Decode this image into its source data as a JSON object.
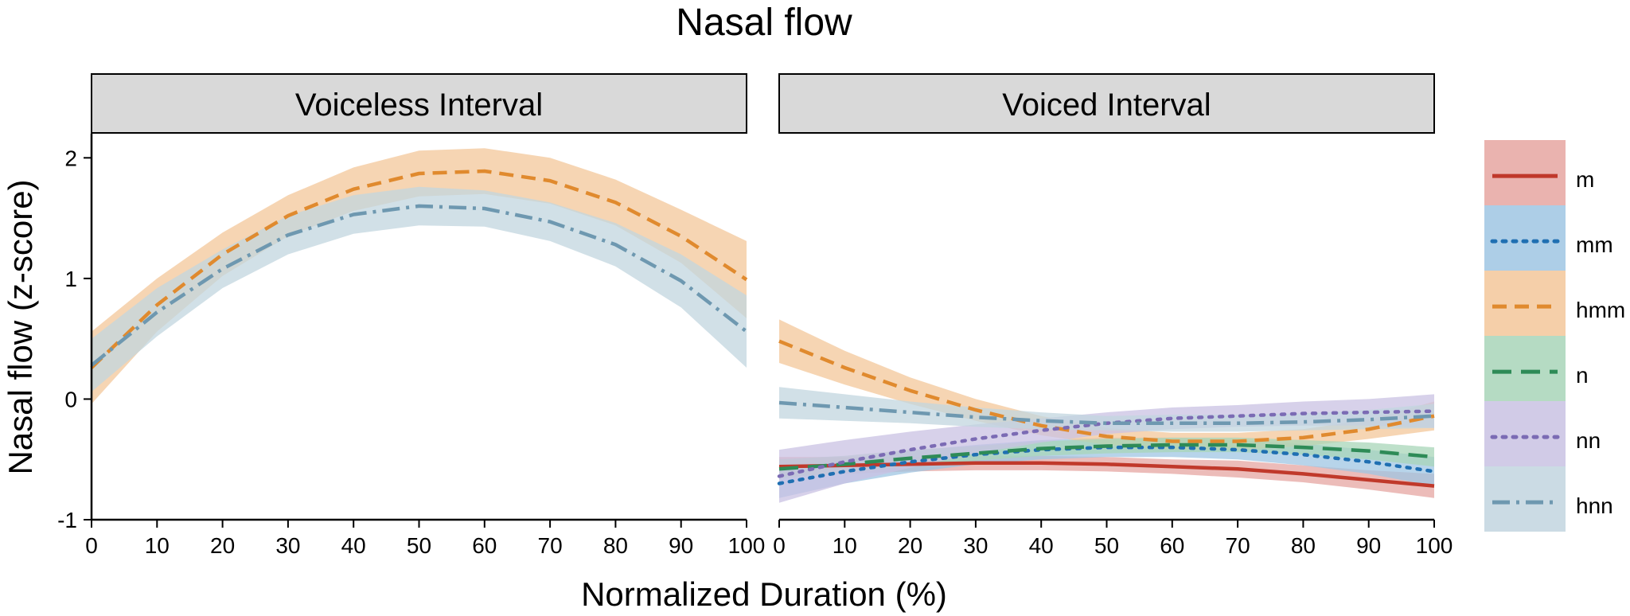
{
  "chart_data": {
    "type": "line",
    "title": "Nasal flow",
    "xlabel": "Normalized Duration (%)",
    "ylabel": "Nasal flow (z-score)",
    "xlim": [
      0,
      100
    ],
    "ylim": [
      -1,
      2.2
    ],
    "x_ticks": [
      0,
      10,
      20,
      30,
      40,
      50,
      60,
      70,
      80,
      90,
      100
    ],
    "y_ticks": [
      -1,
      0,
      1,
      2
    ],
    "grid": false,
    "legend_position": "right",
    "x": [
      0,
      10,
      20,
      30,
      40,
      50,
      60,
      70,
      80,
      90,
      100
    ],
    "series_styles": [
      {
        "name": "m",
        "color": "#C0392B",
        "band_color": "#E6A6A1",
        "dash": "solid"
      },
      {
        "name": "mm",
        "color": "#1F6FB2",
        "band_color": "#9FC6E3",
        "dash": "dotted"
      },
      {
        "name": "hmm",
        "color": "#E08A2E",
        "band_color": "#F3C79A",
        "dash": "dashed"
      },
      {
        "name": "n",
        "color": "#2E8B57",
        "band_color": "#A8D5B8",
        "dash": "longdash"
      },
      {
        "name": "nn",
        "color": "#7B6BB4",
        "band_color": "#C9C2E3",
        "dash": "dotted"
      },
      {
        "name": "hnn",
        "color": "#6E98B0",
        "band_color": "#C2D5DF",
        "dash": "dotdash"
      }
    ],
    "panels": [
      {
        "strip_label": "Voiceless Interval",
        "series": [
          {
            "name": "hmm",
            "values": [
              0.26,
              0.78,
              1.2,
              1.52,
              1.74,
              1.87,
              1.89,
              1.81,
              1.63,
              1.35,
              0.99
            ],
            "lower": [
              -0.04,
              0.56,
              1.02,
              1.35,
              1.56,
              1.68,
              1.7,
              1.62,
              1.44,
              1.13,
              0.67
            ],
            "upper": [
              0.56,
              1.0,
              1.38,
              1.69,
              1.92,
              2.06,
              2.08,
              2.0,
              1.82,
              1.57,
              1.31
            ]
          },
          {
            "name": "hnn",
            "values": [
              0.28,
              0.72,
              1.08,
              1.36,
              1.53,
              1.6,
              1.58,
              1.47,
              1.28,
              0.98,
              0.56
            ],
            "lower": [
              0.06,
              0.52,
              0.92,
              1.2,
              1.37,
              1.44,
              1.43,
              1.31,
              1.1,
              0.76,
              0.26
            ],
            "upper": [
              0.5,
              0.92,
              1.24,
              1.52,
              1.69,
              1.76,
              1.73,
              1.63,
              1.46,
              1.2,
              0.86
            ]
          }
        ]
      },
      {
        "strip_label": "Voiced Interval",
        "series": [
          {
            "name": "m",
            "values": [
              -0.56,
              -0.55,
              -0.54,
              -0.53,
              -0.53,
              -0.54,
              -0.56,
              -0.58,
              -0.62,
              -0.67,
              -0.72
            ],
            "lower": [
              -0.64,
              -0.62,
              -0.6,
              -0.59,
              -0.59,
              -0.6,
              -0.62,
              -0.65,
              -0.69,
              -0.75,
              -0.82
            ],
            "upper": [
              -0.48,
              -0.48,
              -0.48,
              -0.47,
              -0.47,
              -0.48,
              -0.5,
              -0.51,
              -0.55,
              -0.59,
              -0.62
            ]
          },
          {
            "name": "mm",
            "values": [
              -0.7,
              -0.6,
              -0.52,
              -0.46,
              -0.42,
              -0.4,
              -0.4,
              -0.42,
              -0.46,
              -0.52,
              -0.6
            ],
            "lower": [
              -0.82,
              -0.7,
              -0.61,
              -0.54,
              -0.5,
              -0.48,
              -0.48,
              -0.5,
              -0.55,
              -0.62,
              -0.72
            ],
            "upper": [
              -0.58,
              -0.5,
              -0.43,
              -0.38,
              -0.34,
              -0.32,
              -0.32,
              -0.34,
              -0.37,
              -0.42,
              -0.48
            ]
          },
          {
            "name": "hmm",
            "values": [
              0.48,
              0.26,
              0.07,
              -0.09,
              -0.22,
              -0.31,
              -0.35,
              -0.35,
              -0.32,
              -0.25,
              -0.14
            ],
            "lower": [
              0.3,
              0.12,
              -0.04,
              -0.18,
              -0.3,
              -0.38,
              -0.42,
              -0.42,
              -0.39,
              -0.33,
              -0.26
            ],
            "upper": [
              0.66,
              0.4,
              0.18,
              0.0,
              -0.14,
              -0.24,
              -0.28,
              -0.28,
              -0.25,
              -0.17,
              -0.02
            ]
          },
          {
            "name": "n",
            "values": [
              -0.58,
              -0.54,
              -0.49,
              -0.45,
              -0.41,
              -0.39,
              -0.38,
              -0.38,
              -0.4,
              -0.43,
              -0.48
            ],
            "lower": [
              -0.66,
              -0.61,
              -0.56,
              -0.51,
              -0.47,
              -0.45,
              -0.44,
              -0.44,
              -0.46,
              -0.5,
              -0.56
            ],
            "upper": [
              -0.5,
              -0.47,
              -0.42,
              -0.39,
              -0.35,
              -0.33,
              -0.32,
              -0.32,
              -0.34,
              -0.36,
              -0.4
            ]
          },
          {
            "name": "nn",
            "values": [
              -0.64,
              -0.52,
              -0.42,
              -0.33,
              -0.26,
              -0.2,
              -0.16,
              -0.14,
              -0.12,
              -0.11,
              -0.1
            ],
            "lower": [
              -0.86,
              -0.7,
              -0.57,
              -0.45,
              -0.36,
              -0.29,
              -0.25,
              -0.23,
              -0.22,
              -0.22,
              -0.24
            ],
            "upper": [
              -0.42,
              -0.34,
              -0.27,
              -0.21,
              -0.16,
              -0.11,
              -0.07,
              -0.05,
              -0.02,
              0.0,
              0.04
            ]
          },
          {
            "name": "hnn",
            "values": [
              -0.03,
              -0.07,
              -0.11,
              -0.15,
              -0.18,
              -0.2,
              -0.2,
              -0.2,
              -0.19,
              -0.17,
              -0.14
            ],
            "lower": [
              -0.16,
              -0.18,
              -0.2,
              -0.23,
              -0.25,
              -0.26,
              -0.27,
              -0.27,
              -0.26,
              -0.25,
              -0.24
            ],
            "upper": [
              0.1,
              0.04,
              -0.02,
              -0.07,
              -0.11,
              -0.14,
              -0.13,
              -0.13,
              -0.12,
              -0.09,
              -0.04
            ]
          }
        ]
      }
    ]
  }
}
